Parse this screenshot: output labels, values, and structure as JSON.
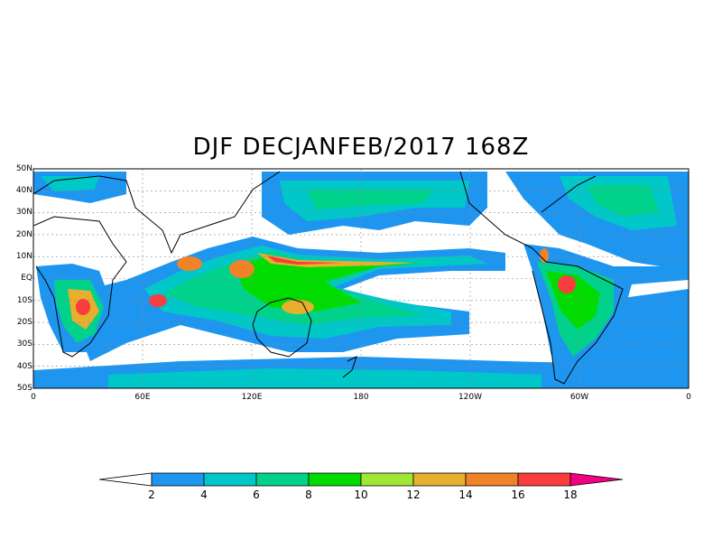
{
  "title": "DJF DECJANFEB/2017 168Z",
  "map": {
    "lat_labels": [
      "50N",
      "40N",
      "30N",
      "20N",
      "10N",
      "EQ",
      "10S",
      "20S",
      "30S",
      "40S",
      "50S"
    ],
    "lon_labels": [
      "0",
      "60E",
      "120E",
      "180",
      "120W",
      "60W",
      "0"
    ]
  },
  "colorbar": {
    "labels": [
      "2",
      "4",
      "6",
      "8",
      "10",
      "12",
      "14",
      "16",
      "18"
    ],
    "colors": [
      "#ffffff",
      "#1e96f0",
      "#00c8c8",
      "#00d28c",
      "#00dc00",
      "#a0e632",
      "#e6af2d",
      "#f08228",
      "#fa3c3c",
      "#f00082"
    ]
  },
  "palette": {
    "blue": "#1e96f0",
    "teal": "#00c8c8",
    "seagreen": "#00d28c",
    "green": "#00dc00",
    "lime": "#a0e632",
    "orange": "#e6af2d",
    "darkorange": "#f08228",
    "red": "#fa3c3c",
    "magenta": "#f00082"
  }
}
